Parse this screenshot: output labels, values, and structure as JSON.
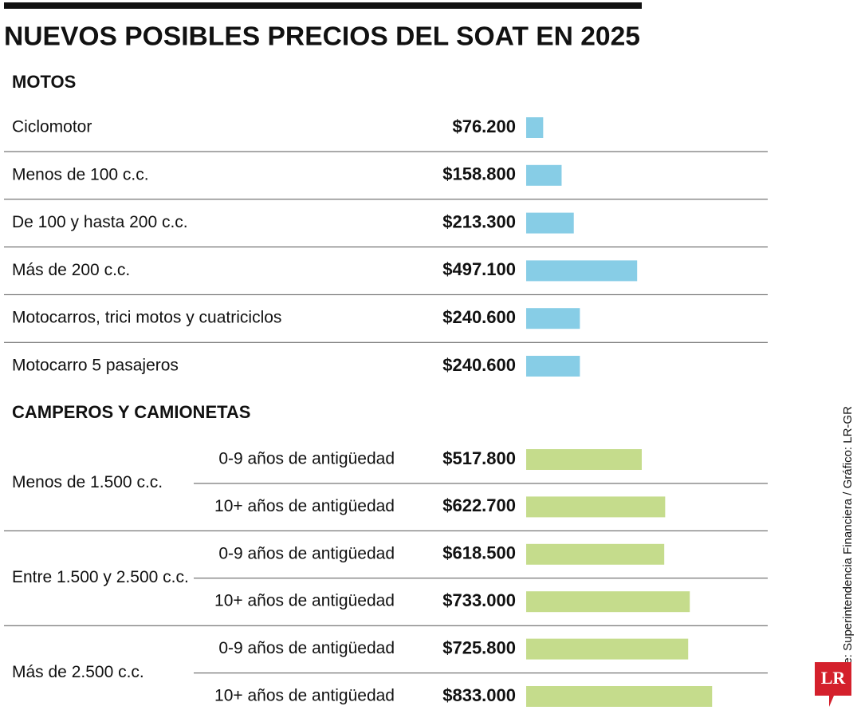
{
  "title": "NUEVOS POSIBLES PRECIOS DEL SOAT EN 2025",
  "source": "Fuente: Superintendencia Financiera / Gráfico: LR-GR",
  "logo": "LR",
  "chart_data": [
    {
      "type": "bar",
      "title": "MOTOS",
      "categories": [
        "Ciclomotor",
        "Menos de 100 c.c.",
        "De 100 y hasta 200 c.c.",
        "Más de 200 c.c.",
        "Motocarros, trici motos y cuatriciclos",
        "Motocarro 5 pasajeros"
      ],
      "values": [
        76200,
        158800,
        213300,
        497100,
        240600,
        240600
      ],
      "value_labels": [
        "$76.200",
        "$158.800",
        "$213.300",
        "$497.100",
        "$240.600",
        "$240.600"
      ],
      "color": "#87cde6"
    },
    {
      "type": "bar",
      "title": "CAMPEROS Y CAMIONETAS",
      "groups": [
        "Menos de 1.500 c.c.",
        "Entre 1.500 y 2.500 c.c.",
        "Más de 2.500 c.c."
      ],
      "categories": [
        "0-9 años de antigüedad",
        "10+ años de antigüedad",
        "0-9 años de antigüedad",
        "10+ años de antigüedad",
        "0-9 años de antigüedad",
        "10+ años de antigüedad"
      ],
      "values": [
        517800,
        622700,
        618500,
        733000,
        725800,
        833000
      ],
      "value_labels": [
        "$517.800",
        "$622.700",
        "$618.500",
        "$733.000",
        "$725.800",
        "$833.000"
      ],
      "color": "#c5dc8c"
    }
  ]
}
